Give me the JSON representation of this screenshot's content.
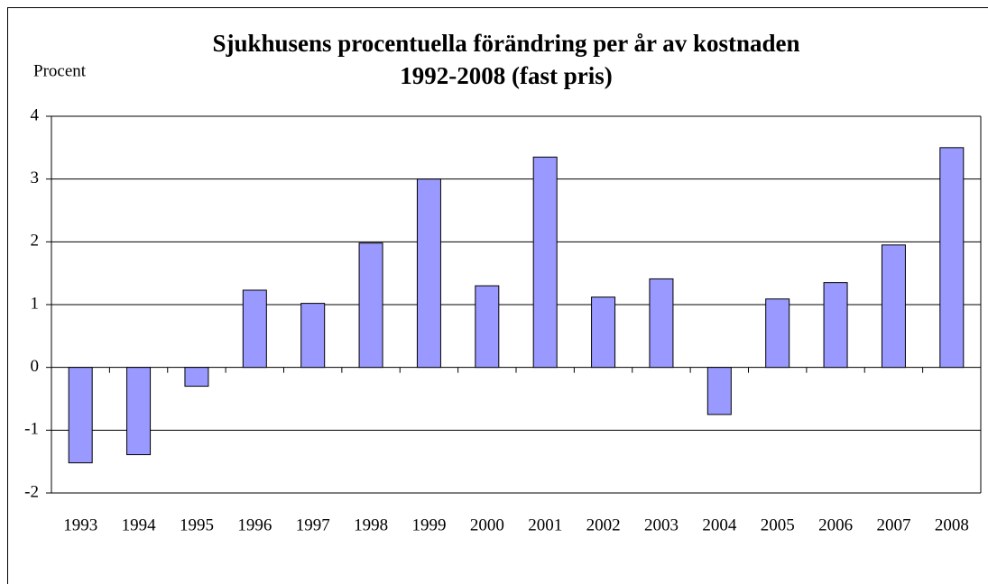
{
  "chart_data": {
    "type": "bar",
    "title": "Sjukhusens procentuella förändring per år av kostnaden 1992-2008 (fast pris)",
    "y_label": "Procent",
    "categories": [
      "1993",
      "1994",
      "1995",
      "1996",
      "1997",
      "1998",
      "1999",
      "2000",
      "2001",
      "2002",
      "2003",
      "2004",
      "2005",
      "2006",
      "2007",
      "2008"
    ],
    "values": [
      -1.52,
      -1.39,
      -0.3,
      1.23,
      1.02,
      1.98,
      3.0,
      1.3,
      3.35,
      1.12,
      1.41,
      -0.75,
      1.09,
      1.35,
      1.95,
      3.5
    ],
    "color": "#9999ff",
    "ylim": [
      -2,
      4
    ],
    "yticks": [
      -2,
      -1,
      0,
      1,
      2,
      3,
      4
    ],
    "grid": true
  }
}
